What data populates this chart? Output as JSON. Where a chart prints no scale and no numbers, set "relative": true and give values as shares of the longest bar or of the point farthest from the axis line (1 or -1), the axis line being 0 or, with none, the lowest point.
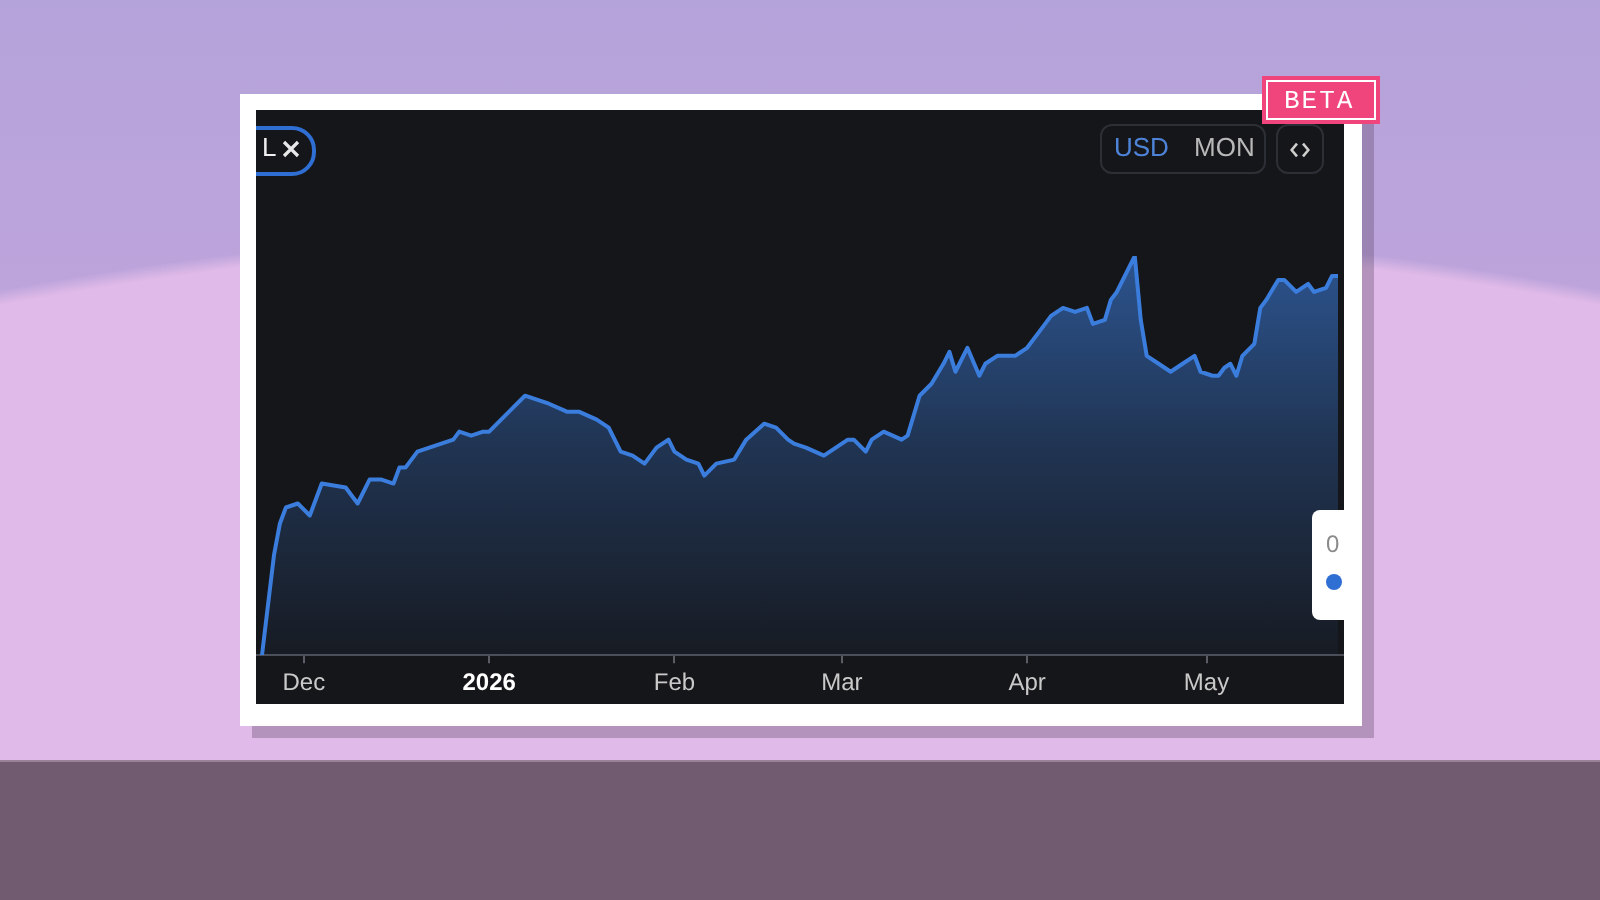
{
  "chart_data": {
    "type": "area",
    "relative": true,
    "color": "#3b7ddd",
    "grid": false,
    "x": [
      "2025-11-24",
      "2025-11-26",
      "2025-11-27",
      "2025-11-28",
      "2025-11-30",
      "2025-12-02",
      "2025-12-04",
      "2025-12-08",
      "2025-12-10",
      "2025-12-12",
      "2025-12-14",
      "2025-12-16",
      "2025-12-17",
      "2025-12-18",
      "2025-12-20",
      "2025-12-22",
      "2025-12-24",
      "2025-12-26",
      "2025-12-27",
      "2025-12-29",
      "2025-12-31",
      "2026-01-01",
      "2026-01-03",
      "2026-01-05",
      "2026-01-07",
      "2026-01-09",
      "2026-01-11",
      "2026-01-14",
      "2026-01-16",
      "2026-01-19",
      "2026-01-21",
      "2026-01-23",
      "2026-01-25",
      "2026-01-27",
      "2026-01-29",
      "2026-01-30",
      "2026-01-31",
      "2026-02-01",
      "2026-02-03",
      "2026-02-05",
      "2026-02-06",
      "2026-02-08",
      "2026-02-11",
      "2026-02-13",
      "2026-02-16",
      "2026-02-18",
      "2026-02-20",
      "2026-02-21",
      "2026-02-23",
      "2026-02-26",
      "2026-02-28",
      "2026-03-02",
      "2026-03-03",
      "2026-03-05",
      "2026-03-06",
      "2026-03-08",
      "2026-03-11",
      "2026-03-12",
      "2026-03-14",
      "2026-03-16",
      "2026-03-18",
      "2026-03-19",
      "2026-03-20",
      "2026-03-22",
      "2026-03-24",
      "2026-03-25",
      "2026-03-27",
      "2026-03-30",
      "2026-04-01",
      "2026-04-03",
      "2026-04-05",
      "2026-04-06",
      "2026-04-07",
      "2026-04-09",
      "2026-04-11",
      "2026-04-12",
      "2026-04-14",
      "2026-04-15",
      "2026-04-16",
      "2026-04-19",
      "2026-04-20",
      "2026-04-21",
      "2026-04-23",
      "2026-04-25",
      "2026-04-27",
      "2026-04-29",
      "2026-04-30",
      "2026-05-02",
      "2026-05-03",
      "2026-05-04",
      "2026-05-05",
      "2026-05-06",
      "2026-05-07",
      "2026-05-09",
      "2026-05-10",
      "2026-05-11",
      "2026-05-13",
      "2026-05-14",
      "2026-05-16",
      "2026-05-18",
      "2026-05-19",
      "2026-05-21",
      "2026-05-22",
      "2026-05-23"
    ],
    "values": [
      0,
      0.25,
      0.33,
      0.37,
      0.38,
      0.35,
      0.43,
      0.42,
      0.38,
      0.44,
      0.44,
      0.43,
      0.47,
      0.47,
      0.51,
      0.52,
      0.53,
      0.54,
      0.56,
      0.55,
      0.56,
      0.56,
      0.59,
      0.62,
      0.65,
      0.64,
      0.63,
      0.61,
      0.61,
      0.59,
      0.57,
      0.51,
      0.5,
      0.48,
      0.52,
      0.53,
      0.54,
      0.51,
      0.49,
      0.48,
      0.45,
      0.48,
      0.49,
      0.54,
      0.58,
      0.57,
      0.54,
      0.53,
      0.52,
      0.5,
      0.52,
      0.54,
      0.54,
      0.51,
      0.54,
      0.56,
      0.54,
      0.55,
      0.65,
      0.68,
      0.73,
      0.76,
      0.71,
      0.77,
      0.7,
      0.73,
      0.75,
      0.75,
      0.77,
      0.81,
      0.85,
      0.86,
      0.87,
      0.86,
      0.87,
      0.83,
      0.84,
      0.89,
      0.91,
      1,
      0.84,
      0.75,
      0.73,
      0.71,
      0.73,
      0.75,
      0.71,
      0.7,
      0.7,
      0.72,
      0.73,
      0.7,
      0.75,
      0.78,
      0.87,
      0.89,
      0.94,
      0.94,
      0.91,
      0.93,
      0.91,
      0.92,
      0.95,
      0.95
    ],
    "xlim": [
      "2025-11-23",
      "2026-05-24"
    ],
    "xticks": [
      {
        "value": "2025-12-01",
        "label": "Dec"
      },
      {
        "value": "2026-01-01",
        "label": "2026"
      },
      {
        "value": "2026-02-01",
        "label": "Feb"
      },
      {
        "value": "2026-03-01",
        "label": "Mar"
      },
      {
        "value": "2026-04-01",
        "label": "Apr"
      },
      {
        "value": "2026-05-01",
        "label": "May"
      }
    ],
    "annotations": [
      "L",
      "USD",
      "MON",
      "BETA",
      "0"
    ]
  }
}
